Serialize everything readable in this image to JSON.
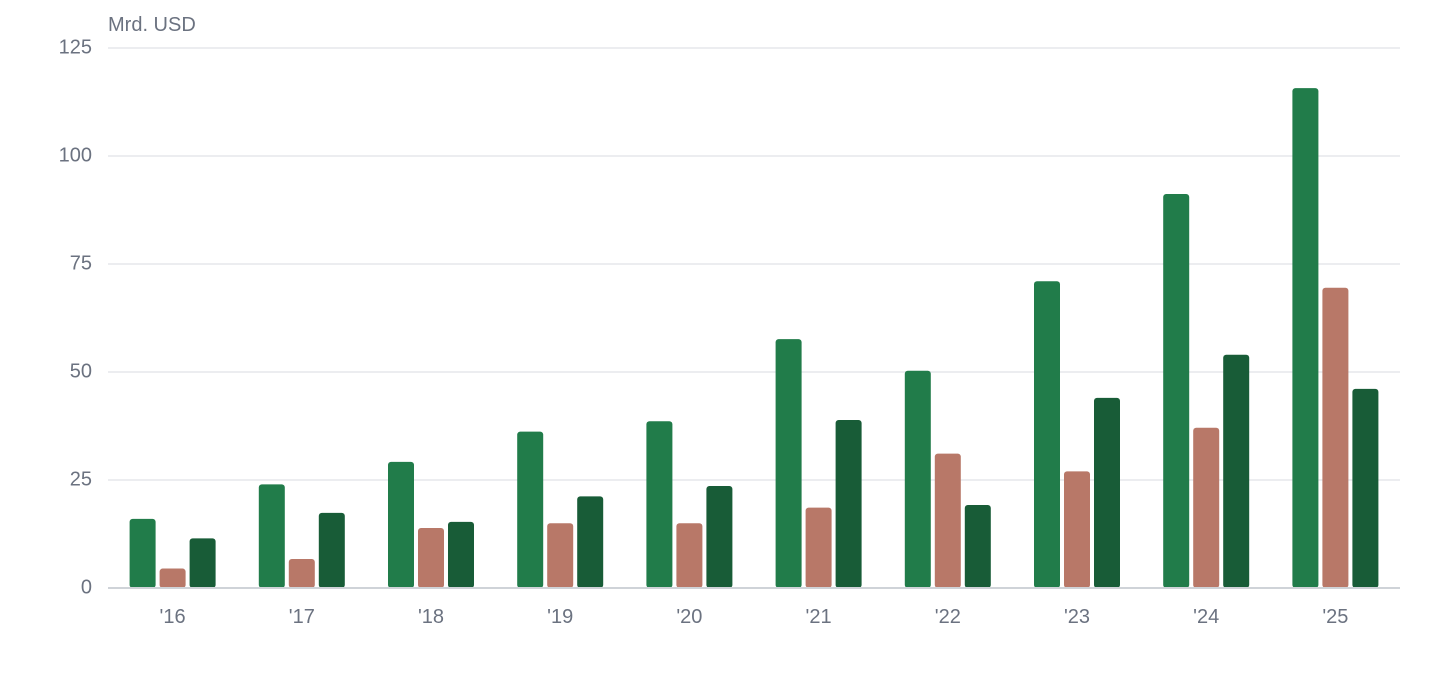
{
  "chart_data": {
    "type": "bar",
    "unit_label": "Mrd. USD",
    "categories": [
      "'16",
      "'17",
      "'18",
      "'19",
      "'20",
      "'21",
      "'22",
      "'23",
      "'24",
      "'25"
    ],
    "yticks": [
      "0",
      "25",
      "50",
      "75",
      "100",
      "125"
    ],
    "ylim": [
      0,
      125
    ],
    "grid": true,
    "legend": "none",
    "series": [
      {
        "color": "#217c4a",
        "values": [
          16,
          24,
          29.2,
          36.2,
          38.6,
          57.6,
          50.3,
          71,
          91.2,
          115.7
        ]
      },
      {
        "color": "#b87868",
        "values": [
          4.5,
          6.7,
          13.9,
          15,
          15,
          18.6,
          31.1,
          27,
          37.1,
          69.5
        ]
      },
      {
        "color": "#185c37",
        "values": [
          11.5,
          17.4,
          15.3,
          21.2,
          23.6,
          38.9,
          19.2,
          44,
          54,
          46.1
        ]
      }
    ]
  }
}
